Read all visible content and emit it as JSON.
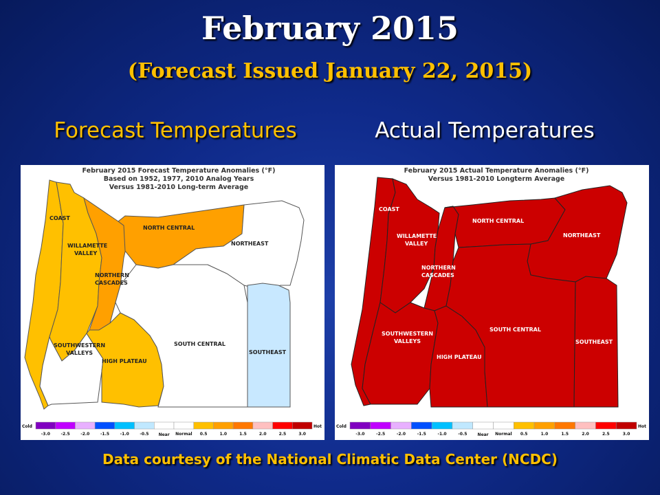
{
  "title": "February 2015",
  "subtitle": "(Forecast Issued January 22, 2015)",
  "left_heading": "Forecast Temperatures",
  "right_heading": "Actual Temperatures",
  "credit": "Data courtesy of the National Climatic Data Center (NCDC)",
  "forecast_map": {
    "title_lines": [
      "February 2015 Forecast Temperature Anomalies (°F)",
      "Based on 1952, 1977, 2010 Analog Years",
      "Versus 1981-2010 Long-term Average"
    ],
    "regions": [
      {
        "name": "COAST",
        "anomaly": "1.0",
        "color": "#ffc000"
      },
      {
        "name": "WILLAMETTE VALLEY",
        "anomaly": "1.0",
        "color": "#ffc000"
      },
      {
        "name": "NORTHERN CASCADES",
        "anomaly": "1.5",
        "color": "#ffa000"
      },
      {
        "name": "NORTH CENTRAL",
        "anomaly": "1.5",
        "color": "#ffa000"
      },
      {
        "name": "NORTHEAST",
        "anomaly": "Near Normal",
        "color": "#ffffff"
      },
      {
        "name": "SOUTHWESTERN VALLEYS",
        "anomaly": "Near Normal",
        "color": "#ffffff"
      },
      {
        "name": "HIGH PLATEAU",
        "anomaly": "1.0",
        "color": "#ffc000"
      },
      {
        "name": "SOUTH CENTRAL",
        "anomaly": "Near Normal",
        "color": "#ffffff"
      },
      {
        "name": "SOUTHEAST",
        "anomaly": "-0.5",
        "color": "#c8e8ff"
      }
    ]
  },
  "actual_map": {
    "title_lines": [
      "February 2015 Actual Temperature Anomalies (°F)",
      "Versus 1981-2010 Longterm Average"
    ],
    "regions": [
      {
        "name": "COAST",
        "anomaly": "3.0",
        "color": "#cc0000"
      },
      {
        "name": "WILLAMETTE VALLEY",
        "anomaly": "3.0",
        "color": "#cc0000"
      },
      {
        "name": "NORTHERN CASCADES",
        "anomaly": "3.0",
        "color": "#cc0000"
      },
      {
        "name": "NORTH CENTRAL",
        "anomaly": "3.0",
        "color": "#cc0000"
      },
      {
        "name": "NORTHEAST",
        "anomaly": "3.0",
        "color": "#cc0000"
      },
      {
        "name": "SOUTHWESTERN VALLEYS",
        "anomaly": "3.0",
        "color": "#cc0000"
      },
      {
        "name": "HIGH PLATEAU",
        "anomaly": "3.0",
        "color": "#cc0000"
      },
      {
        "name": "SOUTH CENTRAL",
        "anomaly": "3.0",
        "color": "#cc0000"
      },
      {
        "name": "SOUTHEAST",
        "anomaly": "3.0",
        "color": "#cc0000"
      }
    ]
  },
  "legend": {
    "cold_label": "Cold",
    "hot_label": "Hot",
    "ticks": [
      "-3.0",
      "-2.5",
      "-2.0",
      "-1.5",
      "-1.0",
      "-0.5",
      "Near",
      "Normal",
      "0.5",
      "1.0",
      "1.5",
      "2.0",
      "2.5",
      "3.0"
    ],
    "colors": [
      "#8000c0",
      "#c000ff",
      "#e8b0ff",
      "#0050ff",
      "#00c0ff",
      "#c0e8ff",
      "#ffffff",
      "#ffffff",
      "#ffc000",
      "#ffa000",
      "#ff7800",
      "#ffc0c0",
      "#ff0000",
      "#c00000"
    ]
  }
}
